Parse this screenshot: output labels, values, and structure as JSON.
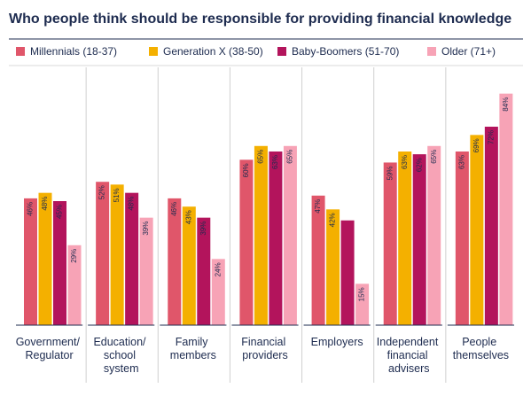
{
  "chart_data": {
    "type": "bar",
    "title": "Who people think should be responsible for providing financial knowledge",
    "categories": [
      "Government/ Regulator",
      "Education/ school system",
      "Family members",
      "Financial providers",
      "Employers",
      "Independent financial advisers",
      "People themselves"
    ],
    "series": [
      {
        "name": "Millennials (18-37)",
        "color": "#e0566a",
        "values": [
          46,
          52,
          46,
          60,
          47,
          59,
          63
        ],
        "value_labels": [
          "46%",
          "52%",
          "46%",
          "60%",
          "47%",
          "59%",
          "63%"
        ]
      },
      {
        "name": "Generation X (38-50)",
        "color": "#f4b000",
        "values": [
          48,
          51,
          43,
          65,
          42,
          63,
          69
        ],
        "value_labels": [
          "48%",
          "51%",
          "43%",
          "65%",
          "42%",
          "63%",
          "69%"
        ]
      },
      {
        "name": "Baby-Boomers (51-70)",
        "color": "#b3145c",
        "values": [
          45,
          48,
          39,
          63,
          38,
          62,
          72
        ],
        "value_labels": [
          "45%",
          "48%",
          "39%",
          "63%",
          null,
          "62%",
          "72%"
        ]
      },
      {
        "name": "Older (71+)",
        "color": "#f7a3b6",
        "values": [
          29,
          39,
          24,
          65,
          15,
          65,
          84
        ],
        "value_labels": [
          "29%",
          "39%",
          "24%",
          "65%",
          "15%",
          "65%",
          "84%"
        ]
      }
    ],
    "ylim": [
      0,
      90
    ]
  }
}
